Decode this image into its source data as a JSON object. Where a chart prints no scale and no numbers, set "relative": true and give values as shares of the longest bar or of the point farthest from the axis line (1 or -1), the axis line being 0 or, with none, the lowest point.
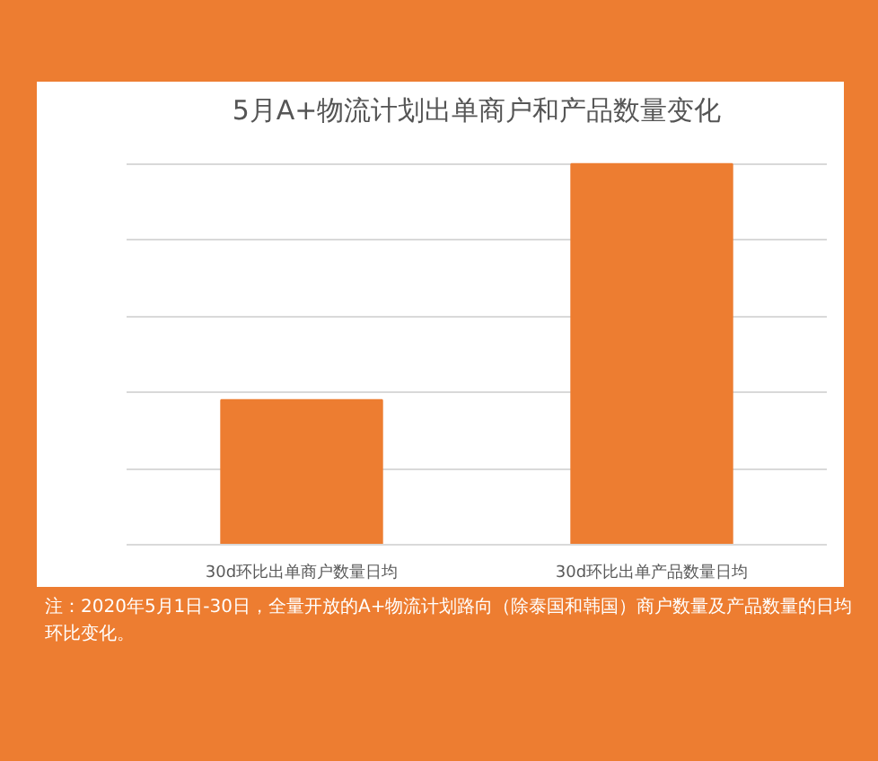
{
  "chart_data": {
    "type": "bar",
    "title": "5月A+物流计划出单商户和产品数量变化",
    "categories": [
      "30d环比出单商户数量日均",
      "30d环比出单产品数量日均"
    ],
    "values": [
      0.38,
      1
    ],
    "color": "#ed7d31",
    "relative": true,
    "grid": "y",
    "annotations": [
      "注：2020年5月1日-30日，全量开放的A+物流计划路向（除泰国和韩国）商户数量及产品数量的日均环比变化。"
    ]
  }
}
